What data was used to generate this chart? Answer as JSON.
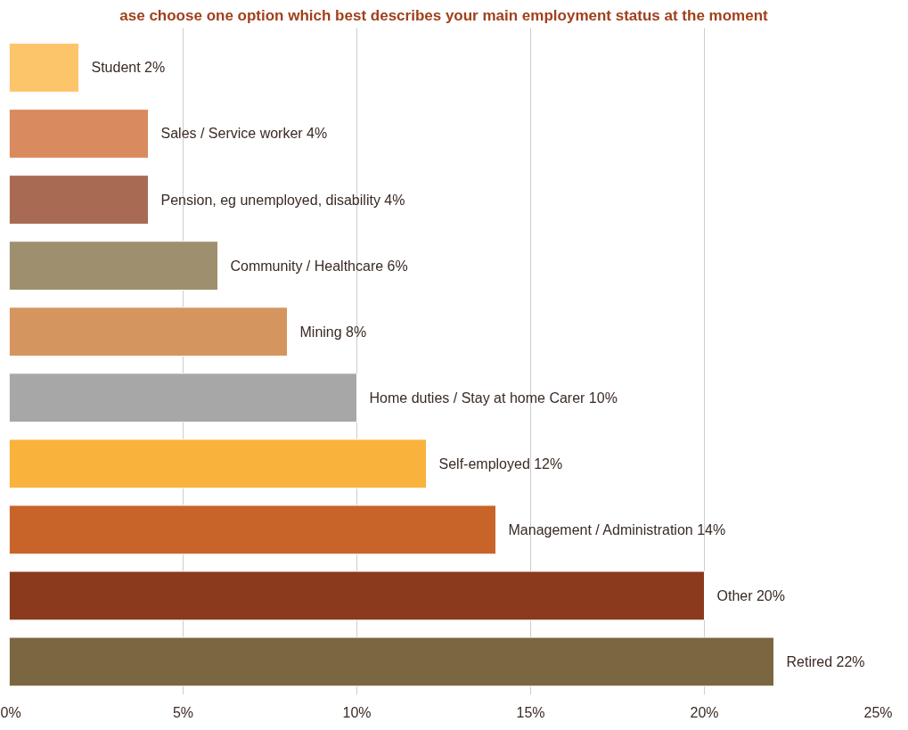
{
  "chart_data": {
    "type": "bar",
    "orientation": "horizontal",
    "title": "ase choose one option which best describes your main employment status at the moment",
    "categories": [
      "Student",
      "Sales / Service worker",
      "Pension, eg unemployed, disability",
      "Community / Healthcare",
      "Mining",
      "Home duties / Stay at home Carer",
      "Self-employed",
      "Management / Administration",
      "Other",
      "Retired "
    ],
    "values": [
      2,
      4,
      4,
      6,
      8,
      10,
      12,
      14,
      20,
      22
    ],
    "value_labels": [
      "2%",
      "4%",
      "4%",
      "6%",
      "8%",
      "10%",
      "12%",
      "14%",
      "20%",
      "22%"
    ],
    "colors": [
      "#fdc56a",
      "#d98a5e",
      "#a96a54",
      "#9e8f6f",
      "#d4965e",
      "#a7a7a7",
      "#f9b23c",
      "#c8642a",
      "#8b3a1e",
      "#7a6640"
    ],
    "xlim": [
      0,
      25
    ],
    "xticks": [
      {
        "value": 0,
        "label": "0%"
      },
      {
        "value": 5,
        "label": "5%"
      },
      {
        "value": 10,
        "label": "10%"
      },
      {
        "value": 15,
        "label": "15%"
      },
      {
        "value": 20,
        "label": "20%"
      },
      {
        "value": 25,
        "label": "25%"
      }
    ],
    "grid": "x"
  }
}
